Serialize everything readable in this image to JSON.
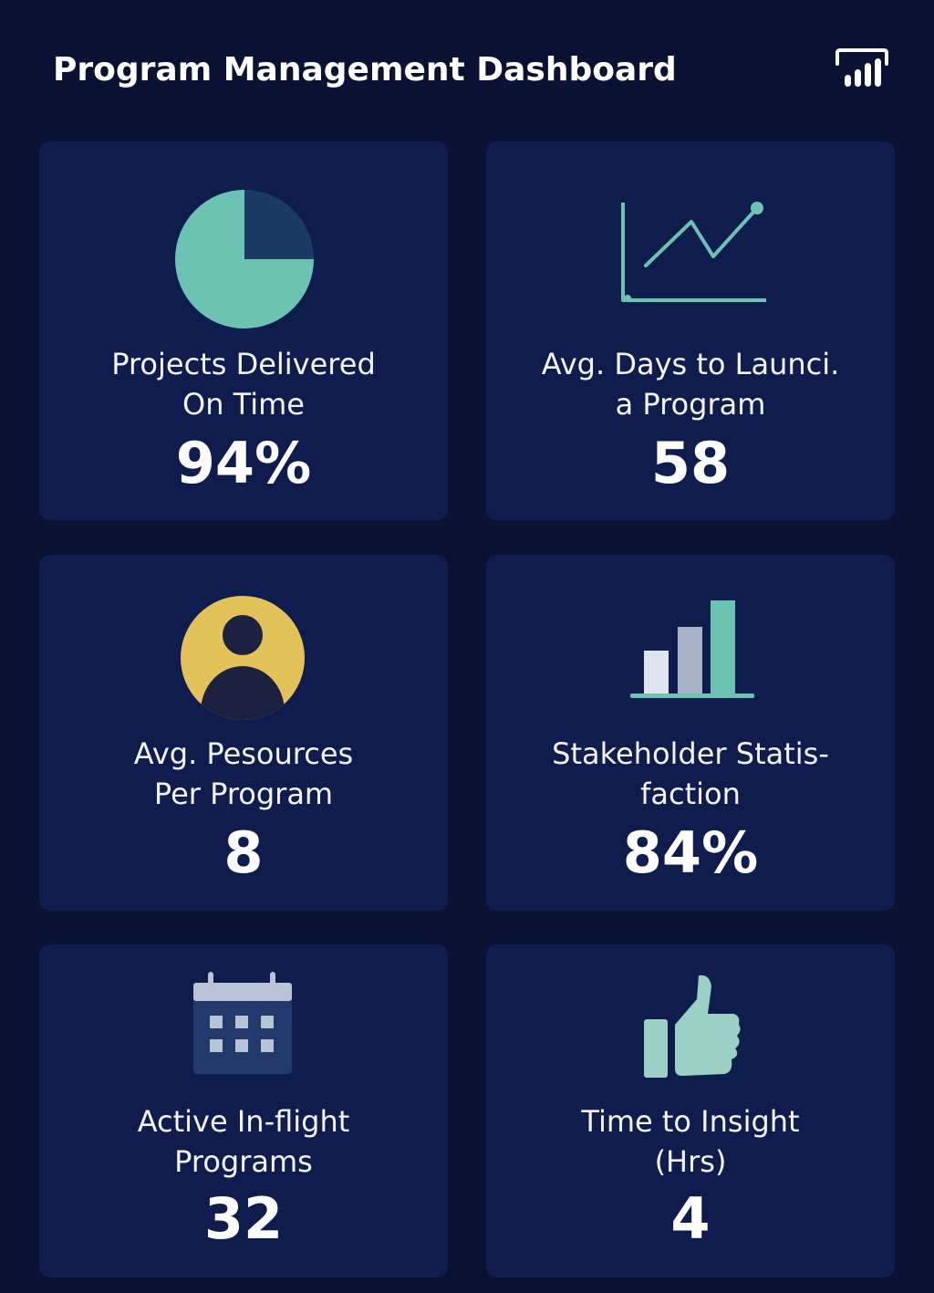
{
  "header": {
    "title": "Program Management Dashboard",
    "icon": "powerbi-logo-icon"
  },
  "colors": {
    "background": "#0a1233",
    "card": "#0f1c4e",
    "teal": "#6cc3b2",
    "yellow": "#e3c259",
    "dark_navy": "#1b2b55"
  },
  "cards": [
    {
      "label": "Projects Delivered\nOn Time",
      "value": "94%",
      "icon": "pie-chart-icon"
    },
    {
      "label": "Avg. Days to Launci.\na Program",
      "value": "58",
      "icon": "line-chart-icon"
    },
    {
      "label": "Avg. Pesources\nPer Program",
      "value": "8",
      "icon": "user-avatar-icon"
    },
    {
      "label": "Stakeholder Statis-\nfaction",
      "value": "84%",
      "icon": "bar-chart-icon"
    },
    {
      "label": "Active In-flight\nPrograms",
      "value": "32",
      "icon": "calendar-icon"
    },
    {
      "label": "Time to Insight\n(Hrs)",
      "value": "4",
      "icon": "thumbs-up-icon"
    }
  ]
}
